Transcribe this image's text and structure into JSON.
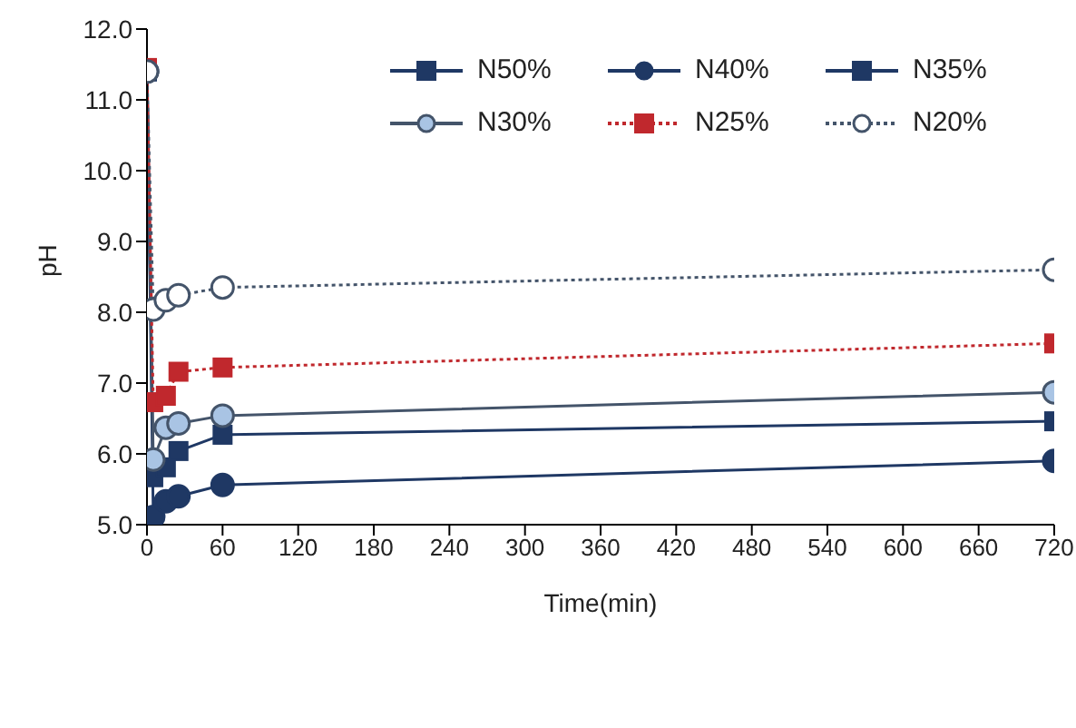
{
  "chart_data": {
    "type": "line",
    "xlabel": "Time(min)",
    "ylabel": "pH",
    "x": [
      0,
      5,
      15,
      25,
      60,
      720
    ],
    "series": [
      {
        "name": "N50%",
        "color": "#1f3864",
        "marker": "square",
        "line_style": "solid",
        "values": [
          null,
          null,
          null,
          null,
          null,
          null
        ]
      },
      {
        "name": "N40%",
        "color": "#1f3864",
        "marker": "circle",
        "line_style": "solid",
        "values": [
          11.4,
          5.11,
          5.33,
          5.4,
          5.56,
          5.9
        ]
      },
      {
        "name": "N35%",
        "color": "#1f3864",
        "marker": "square",
        "line_style": "solid",
        "values": [
          11.4,
          5.67,
          5.81,
          6.04,
          6.27,
          6.46
        ]
      },
      {
        "name": "N30%",
        "color": "#a9c4e4",
        "marker": "circle",
        "line_style": "solid",
        "values": [
          11.4,
          5.92,
          6.37,
          6.43,
          6.54,
          6.87
        ]
      },
      {
        "name": "N25%",
        "color": "#c0282d",
        "marker": "square",
        "line_style": "dotted",
        "values": [
          11.45,
          6.73,
          6.82,
          7.16,
          7.22,
          7.56
        ]
      },
      {
        "name": "N20%",
        "color": "#ffffff",
        "marker": "circle",
        "line_style": "dotted",
        "values": [
          11.4,
          8.04,
          8.17,
          8.24,
          8.35,
          8.6
        ]
      }
    ],
    "xlim": [
      0,
      720
    ],
    "xticks": [
      0,
      60,
      120,
      180,
      240,
      300,
      360,
      420,
      480,
      540,
      600,
      660,
      720
    ],
    "ylim": [
      5,
      12
    ],
    "yticks": [
      {
        "value": 5,
        "label": "5.0"
      },
      {
        "value": 6,
        "label": "6.0"
      },
      {
        "value": 7,
        "label": "7.0"
      },
      {
        "value": 8,
        "label": "8.0"
      },
      {
        "value": 9,
        "label": "9.0"
      },
      {
        "value": 10,
        "label": "10.0"
      },
      {
        "value": 11,
        "label": "11.0"
      },
      {
        "value": 12,
        "label": "12.0"
      }
    ],
    "grid": false,
    "legend": "top right"
  }
}
